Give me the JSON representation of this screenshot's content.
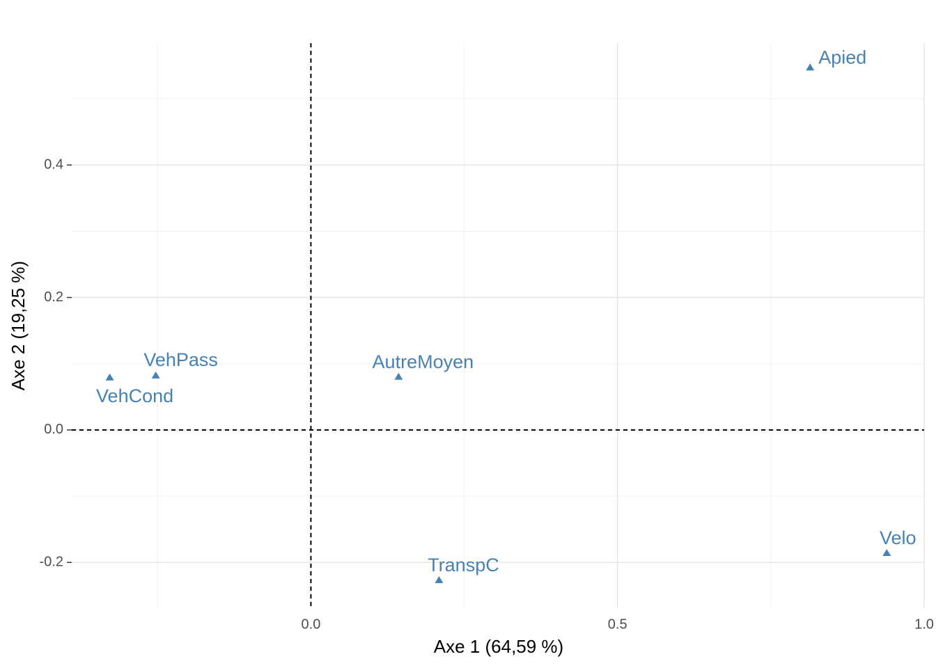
{
  "chart_data": {
    "type": "scatter",
    "x_label": "Axe 1 (64,59 %)",
    "y_label": "Axe 2 (19,25 %)",
    "series": [
      {
        "name": null,
        "color": "#4682b4",
        "labels": [
          "Apied",
          "Velo",
          "TranspC",
          "AutreMoyen",
          "VehPass",
          "VehCond"
        ],
        "x": [
          0.814,
          0.939,
          0.209,
          0.143,
          -0.253,
          -0.328
        ],
        "values": [
          0.547,
          -0.186,
          -0.227,
          0.08,
          0.082,
          0.079
        ]
      }
    ],
    "xlim": [
      -0.39,
      1.0
    ],
    "ylim": [
      -0.268,
      0.584
    ],
    "xticks": [
      {
        "value": 0,
        "label": "0.0"
      },
      {
        "value": 0.5,
        "label": "0.5"
      },
      {
        "value": 1,
        "label": "1.0"
      }
    ],
    "yticks": [
      {
        "value": -0.2,
        "label": "-0.2"
      },
      {
        "value": 0,
        "label": "0.0"
      },
      {
        "value": 0.2,
        "label": "0.2"
      },
      {
        "value": 0.4,
        "label": "0.4"
      }
    ],
    "x_minor_ticks": [
      -0.25,
      0.25,
      0.75
    ],
    "y_minor_ticks": [
      -0.1,
      0.1,
      0.3,
      0.5
    ],
    "reference_lines": {
      "x": 0,
      "y": 0
    },
    "grid": true
  }
}
